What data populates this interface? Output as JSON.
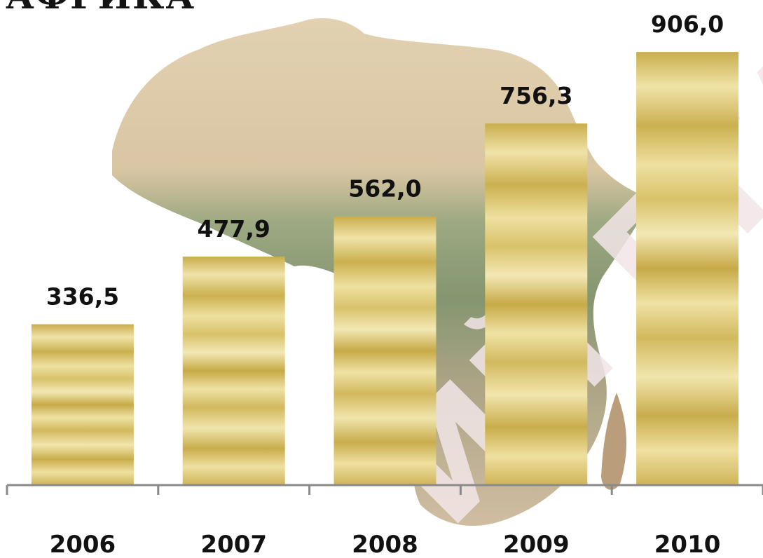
{
  "chart_data": {
    "type": "bar",
    "title": "АФРИКА",
    "categories": [
      "2006",
      "2007",
      "2008",
      "2009",
      "2010"
    ],
    "values": [
      336.5,
      477.9,
      562.0,
      756.3,
      906.0
    ],
    "value_labels": [
      "336,5",
      "477,9",
      "562,0",
      "756,3",
      "906,0"
    ],
    "xlabel": "",
    "ylabel": "",
    "ylim": [
      0,
      1000
    ],
    "grid": false,
    "legend": "none",
    "bar_color": "#d4bc5c",
    "background": "map-of-africa"
  },
  "watermark": "ИЙ БГА"
}
